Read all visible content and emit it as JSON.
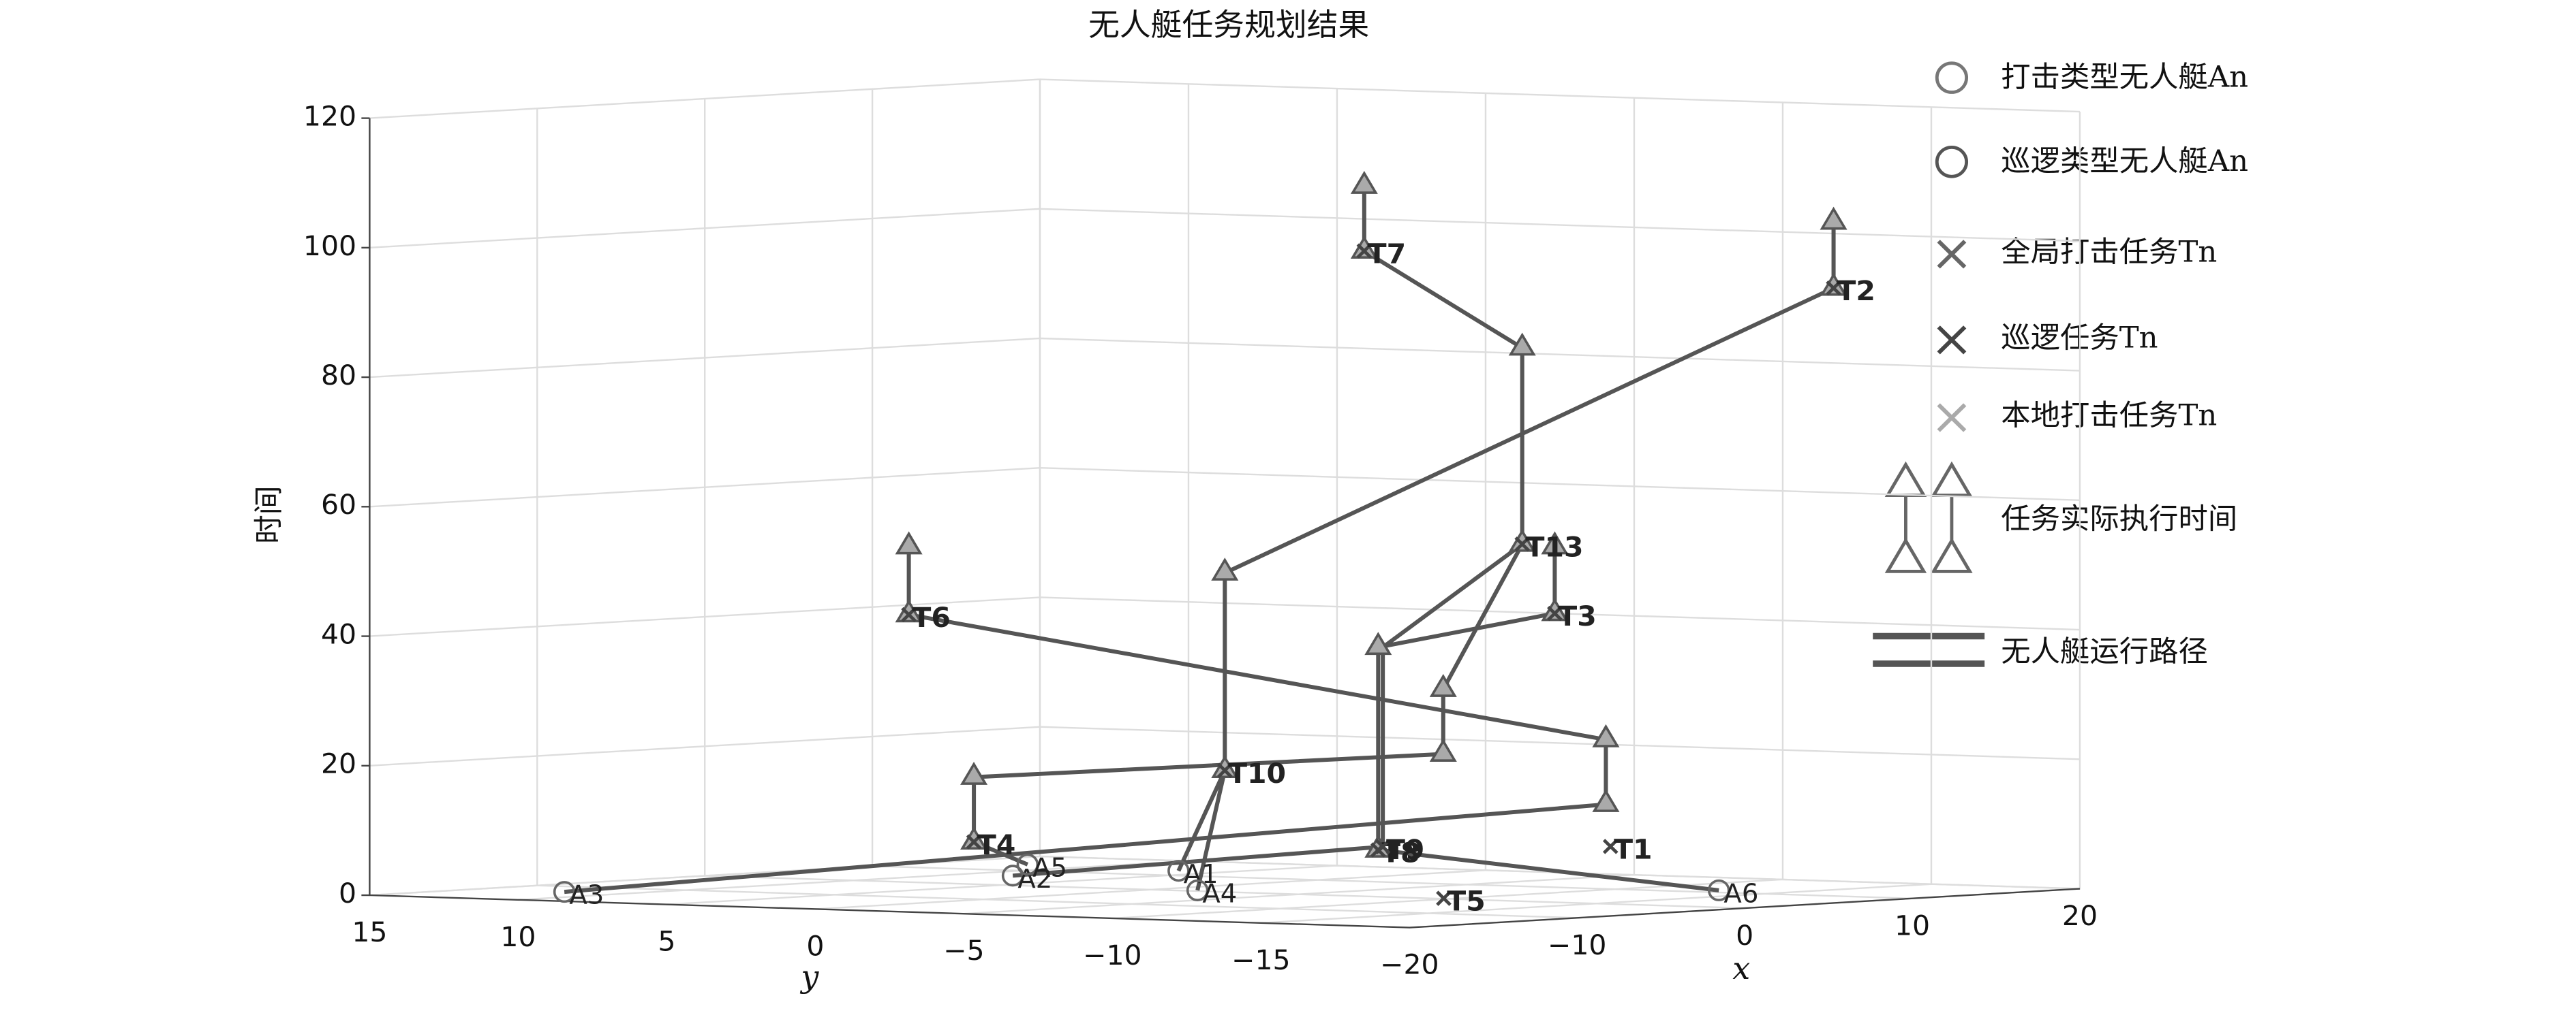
{
  "chart_data": {
    "type": "scatter3d",
    "title": "无人艇任务规划结果",
    "xlabel": "x",
    "ylabel": "y",
    "zlabel": "时间",
    "xlim": [
      -20,
      20
    ],
    "ylim": [
      -20,
      15
    ],
    "zlim": [
      0,
      120
    ],
    "xticks": [
      {
        "value": -10,
        "label": "−10"
      },
      0,
      10,
      20
    ],
    "yticks": [
      15,
      10,
      5,
      0,
      {
        "value": -5,
        "label": "−5"
      },
      {
        "value": -10,
        "label": "−10"
      },
      {
        "value": -15,
        "label": "−15"
      },
      {
        "value": -20,
        "label": "−20"
      }
    ],
    "zticks": [
      0,
      20,
      40,
      60,
      80,
      100,
      120
    ],
    "grid": true,
    "legend_position": "right",
    "legend": [
      "打击类型无人艇An",
      "巡逻类型无人艇An",
      "全局打击任务Tn",
      "巡逻任务Tn",
      "本地打击任务Tn",
      "任务实际执行时间",
      "无人艇运行路径"
    ],
    "boats": {
      "color": "#666666",
      "names": [
        "A1",
        "A2",
        "A3",
        "A4",
        "A5",
        "A6"
      ],
      "x": [
        13.2,
        6.5,
        -13.7,
        0.5,
        14.3,
        11.4
      ],
      "y": [
        6.5,
        8.3,
        12.0,
        -1.3,
        12.2,
        -12.7
      ],
      "z": [
        0,
        0,
        0,
        0,
        0,
        0
      ]
    },
    "tasks": {
      "color": "#444444",
      "names": [
        "T1",
        "T2",
        "T3",
        "T4",
        "T5",
        "T6",
        "T7",
        "T8",
        "T9",
        "T10",
        "T13"
      ],
      "x": [
        9.9,
        14.7,
        8.7,
        -3.8,
        0.3,
        -5.2,
        4.6,
        4.9,
        5.0,
        1.6,
        8.0
      ],
      "y": [
        -9.9,
        -14.7,
        -8.7,
        3.8,
        -9.7,
        5.2,
        -4.6,
        -4.9,
        -5.0,
        -1.6,
        -8.0
      ],
      "z": [
        6.6,
        92.8,
        42.6,
        7.4,
        0,
        42.5,
        98.6,
        6.1,
        6.6,
        18.4,
        53.3
      ]
    },
    "executions": {
      "color": "#555555",
      "x": [
        4.6,
        14.7,
        8.0,
        8.7,
        -5.2,
        1.6,
        4.9,
        6.3,
        9.8,
        -3.8
      ],
      "y": [
        -4.6,
        -14.7,
        -8.0,
        -8.7,
        5.2,
        -1.6,
        -4.9,
        -6.3,
        -9.8,
        3.8
      ],
      "start": [
        98.6,
        92.8,
        53.3,
        42.6,
        42.5,
        18.4,
        6.1,
        20.9,
        13.1,
        7.4
      ],
      "end": [
        108.6,
        103.0,
        83.6,
        52.9,
        53.0,
        48.9,
        37.4,
        30.9,
        23.1,
        17.4
      ]
    },
    "paths": [
      {
        "color": "#555555",
        "x": [
          -13.7,
          9.8,
          9.8,
          -5.2,
          -5.2
        ],
        "y": [
          12.0,
          -9.8,
          -9.8,
          5.2,
          5.2
        ],
        "z": [
          0,
          13.1,
          23.1,
          42.5,
          53.0
        ]
      },
      {
        "color": "#555555",
        "x": [
          11.4,
          4.9,
          4.9,
          8.7,
          8.7
        ],
        "y": [
          -12.7,
          -4.9,
          -4.9,
          -8.7,
          -8.7
        ],
        "z": [
          0,
          6.1,
          37.4,
          42.6,
          52.9
        ]
      },
      {
        "color": "#555555",
        "x": [
          6.5,
          5.0,
          5.0,
          8.0,
          8.0,
          4.6,
          4.6
        ],
        "y": [
          8.3,
          -5.0,
          -5.0,
          -8.0,
          -8.0,
          -4.6,
          -4.6
        ],
        "z": [
          0,
          6.6,
          37.4,
          53.3,
          83.6,
          98.6,
          108.6
        ]
      },
      {
        "color": "#555555",
        "x": [
          0.5,
          1.6,
          1.6,
          14.7,
          14.7
        ],
        "y": [
          -1.3,
          -1.6,
          -1.6,
          -14.7,
          -14.7
        ],
        "z": [
          0,
          18.4,
          48.9,
          92.8,
          103.0
        ]
      },
      {
        "color": "#555555",
        "x": [
          14.3,
          -3.8,
          -3.8,
          6.3,
          6.3,
          8.0
        ],
        "y": [
          12.2,
          3.8,
          3.8,
          -6.3,
          -6.3,
          -8.0
        ],
        "z": [
          0,
          7.4,
          17.4,
          20.9,
          30.9,
          53.3
        ]
      },
      {
        "color": "#555555",
        "x": [
          13.2,
          1.6
        ],
        "y": [
          6.5,
          -1.6
        ],
        "z": [
          0,
          18.4
        ]
      }
    ]
  }
}
